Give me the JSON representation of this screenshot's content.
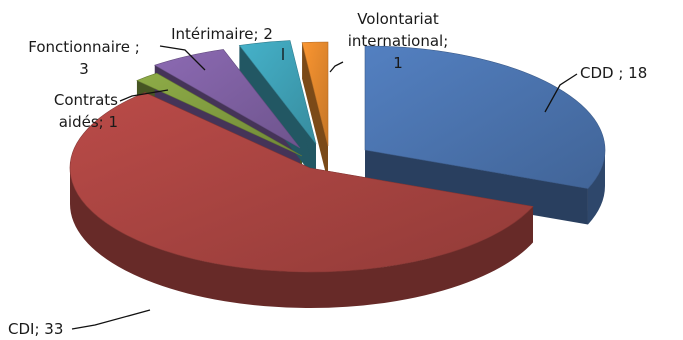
{
  "chart_data": {
    "type": "pie",
    "style": "3d-exploded",
    "categories": [
      "CDD",
      "CDI",
      "Contrats aidés",
      "Fonctionnaire",
      "Intérimaire",
      "Volontariat international"
    ],
    "values": [
      18,
      33,
      1,
      3,
      2,
      1
    ],
    "colors": [
      "#4a72ac",
      "#a64340",
      "#7f9a3f",
      "#7d5fa0",
      "#3e9fb4",
      "#e0862c"
    ],
    "labels": [
      [
        "CDD ; 18"
      ],
      [
        "CDI; 33"
      ],
      [
        "Contrats",
        "aidés; 1"
      ],
      [
        "Fonctionnaire ;",
        "3"
      ],
      [
        "Intérimaire; 2"
      ],
      [
        "Volontariat",
        "international;",
        "1"
      ]
    ]
  }
}
